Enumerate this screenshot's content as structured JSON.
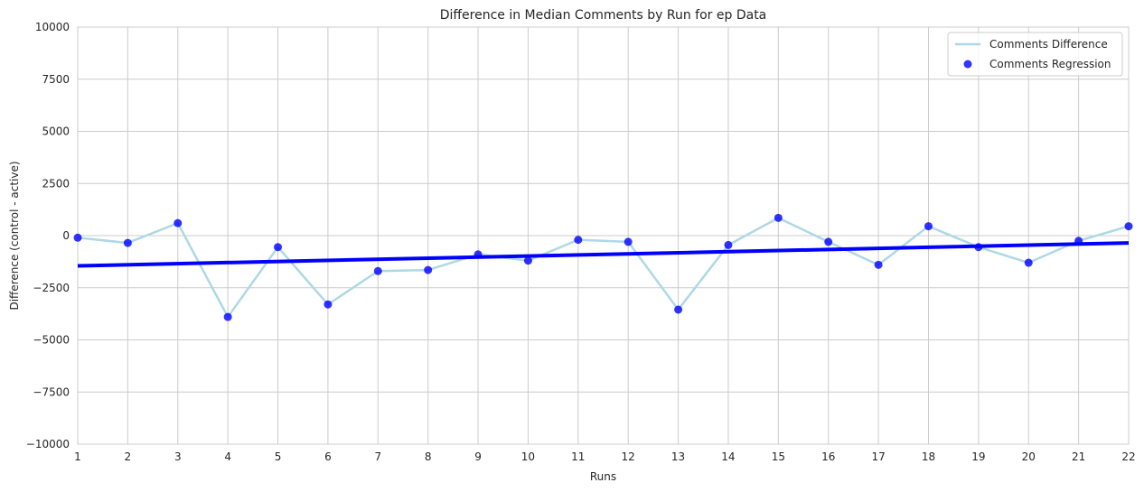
{
  "chart_data": {
    "type": "line",
    "title": "Difference in Median Comments by Run for ep Data",
    "xlabel": "Runs",
    "ylabel": "Difference (control - active)",
    "x": [
      1,
      2,
      3,
      4,
      5,
      6,
      7,
      8,
      9,
      10,
      11,
      12,
      13,
      14,
      15,
      16,
      17,
      18,
      19,
      20,
      21,
      22
    ],
    "xlim": [
      1,
      22
    ],
    "ylim": [
      -10000,
      10000
    ],
    "yticks": [
      -10000,
      -7500,
      -5000,
      -2500,
      0,
      2500,
      5000,
      7500,
      10000
    ],
    "ytick_labels": [
      "−10000",
      "−7500",
      "−5000",
      "−2500",
      "0",
      "2500",
      "5000",
      "7500",
      "10000"
    ],
    "xtick_labels": [
      "1",
      "2",
      "3",
      "4",
      "5",
      "6",
      "7",
      "8",
      "9",
      "10",
      "11",
      "12",
      "13",
      "14",
      "15",
      "16",
      "17",
      "18",
      "19",
      "20",
      "21",
      "22"
    ],
    "grid": true,
    "legend_placement": "top-right",
    "series": [
      {
        "name": "Comments Difference",
        "kind": "line",
        "color": "#add8e6",
        "values": [
          -100,
          -350,
          600,
          -3900,
          -550,
          -3300,
          -1700,
          -1650,
          -900,
          -1200,
          -200,
          -300,
          -3550,
          -450,
          850,
          -300,
          -1400,
          450,
          -550,
          -1300,
          -250,
          450
        ]
      },
      {
        "name": "Comments Regression",
        "kind": "scatter",
        "color": "#0000ff",
        "values": [
          -100,
          -350,
          600,
          -3900,
          -550,
          -3300,
          -1700,
          -1650,
          -900,
          -1200,
          -200,
          -300,
          -3550,
          -450,
          850,
          -300,
          -1400,
          450,
          -550,
          -1300,
          -250,
          450
        ]
      }
    ],
    "regression_line": {
      "color": "#0000ff",
      "start": [
        1,
        -1450
      ],
      "end": [
        22,
        -350
      ]
    }
  }
}
